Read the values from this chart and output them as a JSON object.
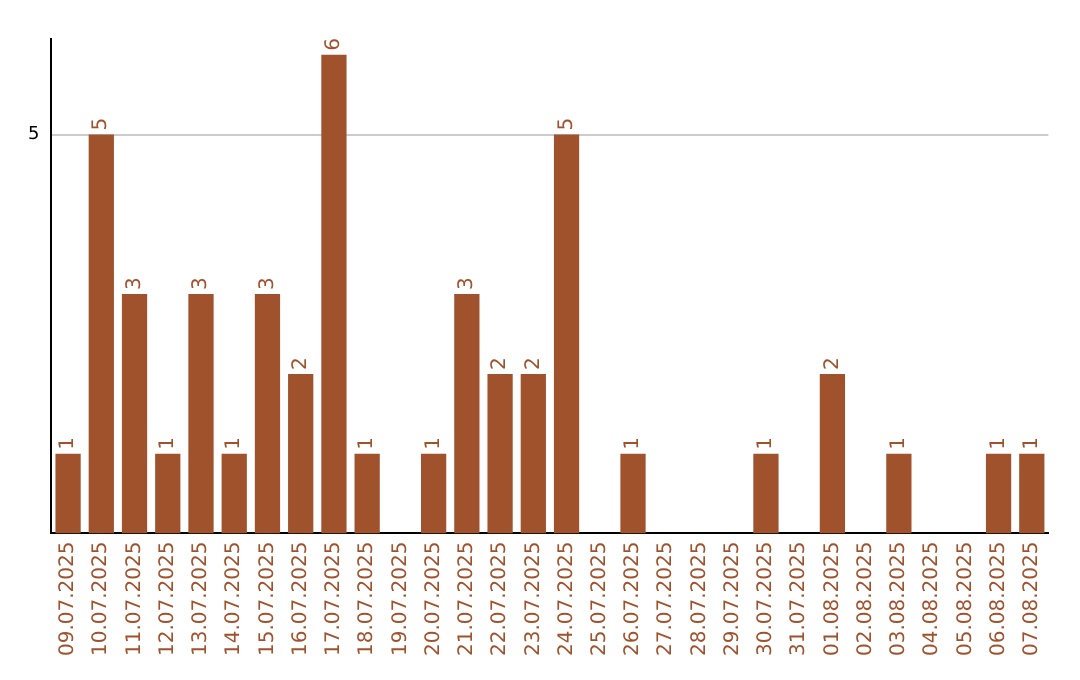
{
  "chart_data": {
    "type": "bar",
    "categories": [
      "09.07.2025",
      "10.07.2025",
      "11.07.2025",
      "12.07.2025",
      "13.07.2025",
      "14.07.2025",
      "15.07.2025",
      "16.07.2025",
      "17.07.2025",
      "18.07.2025",
      "19.07.2025",
      "20.07.2025",
      "21.07.2025",
      "22.07.2025",
      "23.07.2025",
      "24.07.2025",
      "25.07.2025",
      "26.07.2025",
      "27.07.2025",
      "28.07.2025",
      "29.07.2025",
      "30.07.2025",
      "31.07.2025",
      "01.08.2025",
      "02.08.2025",
      "03.08.2025",
      "04.08.2025",
      "05.08.2025",
      "06.08.2025",
      "07.08.2025"
    ],
    "values": [
      1,
      5,
      3,
      1,
      3,
      1,
      3,
      2,
      6,
      1,
      0,
      1,
      3,
      2,
      2,
      5,
      0,
      1,
      0,
      0,
      0,
      1,
      0,
      2,
      0,
      1,
      0,
      0,
      1,
      1
    ],
    "value_labels": [
      "1",
      "5",
      "3",
      "1",
      "3",
      "1",
      "3",
      "2",
      "6",
      "1",
      null,
      "1",
      "3",
      "2",
      "2",
      "5",
      null,
      "1",
      null,
      null,
      null,
      "1",
      null,
      "2",
      null,
      "1",
      null,
      null,
      "1",
      "1"
    ],
    "color": "#a0522d",
    "ylim": [
      0,
      6.2
    ],
    "yticks": [
      5
    ],
    "grid": "y"
  }
}
